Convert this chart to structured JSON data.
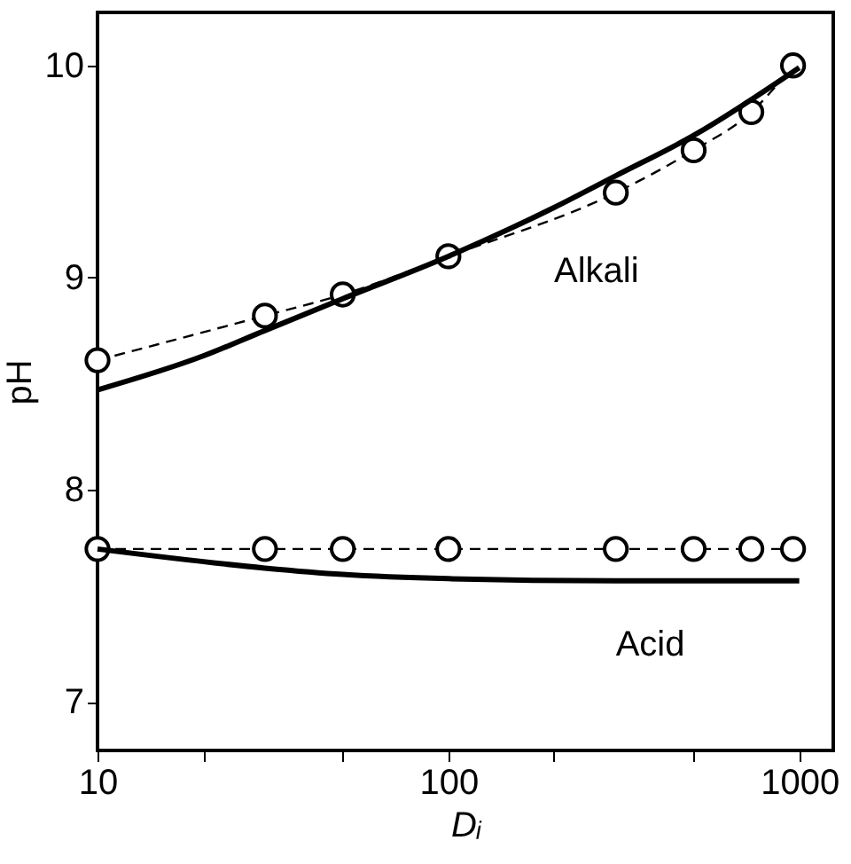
{
  "chart_data": {
    "type": "line",
    "xlabel": "Dᵢ",
    "ylabel": "pH",
    "log": "x",
    "grid": false,
    "xlim": [
      10,
      1250
    ],
    "ylim": [
      6.77,
      10.25
    ],
    "xticks": [
      10,
      {
        "value": 20,
        "label": null
      },
      {
        "value": 50,
        "label": null
      },
      100,
      {
        "value": 200,
        "label": null
      },
      {
        "value": 500,
        "label": null
      },
      1000
    ],
    "yticks": [
      7,
      8,
      9,
      10
    ],
    "series": [
      {
        "color": "#000000",
        "marker": "circle",
        "line_style": "dashed",
        "x": [
          10,
          30,
          50,
          100,
          300,
          500,
          730,
          960
        ],
        "values": [
          8.61,
          8.82,
          8.92,
          9.1,
          9.4,
          9.6,
          9.78,
          10.0
        ]
      },
      {
        "name": "Alkali",
        "color": "#000000",
        "marker": "none",
        "line_style": "solid",
        "x": [
          10,
          20,
          30,
          50,
          100,
          200,
          300,
          500,
          1000
        ],
        "values": [
          8.47,
          8.63,
          8.75,
          8.9,
          9.1,
          9.33,
          9.48,
          9.67,
          9.99
        ]
      },
      {
        "color": "#000000",
        "marker": "circle",
        "line_style": "dashed",
        "x": [
          10,
          30,
          50,
          100,
          300,
          500,
          730,
          960
        ],
        "values": [
          7.72,
          7.72,
          7.72,
          7.72,
          7.72,
          7.72,
          7.72,
          7.72
        ]
      },
      {
        "name": "Acid",
        "color": "#000000",
        "marker": "none",
        "line_style": "solid",
        "x": [
          10,
          30,
          50,
          100,
          300,
          1000
        ],
        "values": [
          7.72,
          7.63,
          7.6,
          7.58,
          7.57,
          7.57
        ]
      }
    ]
  }
}
